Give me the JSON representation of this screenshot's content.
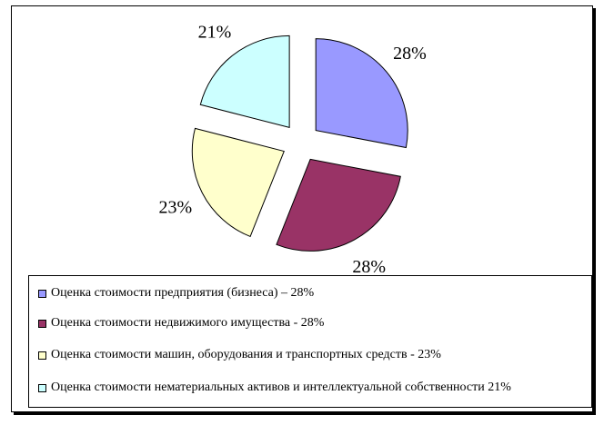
{
  "chart_data": {
    "type": "pie",
    "exploded": true,
    "slices": [
      {
        "value": 28,
        "label": "28%",
        "color": "#9999ff"
      },
      {
        "value": 28,
        "label": "28%",
        "color": "#993366"
      },
      {
        "value": 23,
        "label": "23%",
        "color": "#ffffcc"
      },
      {
        "value": 21,
        "label": "21%",
        "color": "#ccffff"
      }
    ],
    "legend": {
      "placement": "bottom",
      "entries": [
        "Оценка стоимости предприятия (бизнеса) – 28%",
        "Оценка стоимости недвижимого имущества  - 28%",
        "Оценка стоимости машин, оборудования и транспортных средств  - 23%",
        "Оценка стоимости нематериальных активов и интеллектуальной собственности 21%"
      ]
    }
  }
}
